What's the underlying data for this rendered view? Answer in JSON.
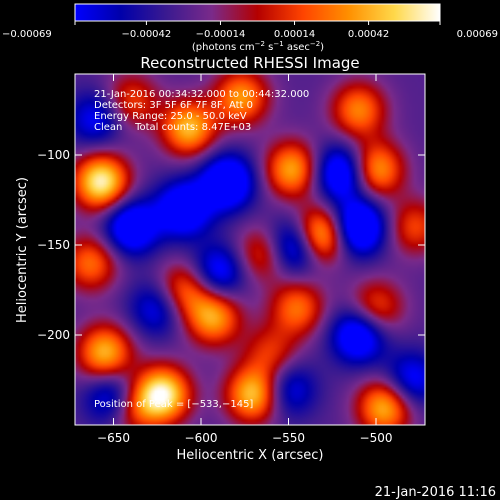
{
  "chart_data": {
    "type": "heatmap",
    "title": "Reconstructed RHESSI Image",
    "xlabel": "Heliocentric X (arcsec)",
    "ylabel": "Heliocentric Y (arcsec)",
    "xlim": [
      -672,
      -472
    ],
    "ylim": [
      -250,
      -55
    ],
    "x_ticks": [
      {
        "value": -650,
        "label": "−650"
      },
      {
        "value": -600,
        "label": "−600"
      },
      {
        "value": -550,
        "label": "−550"
      },
      {
        "value": -500,
        "label": "−500"
      }
    ],
    "y_ticks": [
      {
        "value": -100,
        "label": "−100"
      },
      {
        "value": -150,
        "label": "−150"
      },
      {
        "value": -200,
        "label": "−200"
      }
    ],
    "colorbar": {
      "min": -0.00069,
      "max": 0.00069,
      "ticks": [
        {
          "value": -0.00069,
          "label": "−0.00069"
        },
        {
          "value": -0.00042,
          "label": "−0.00042"
        },
        {
          "value": -0.00014,
          "label": "−0.00014"
        },
        {
          "value": 0.00014,
          "label": "0.00014"
        },
        {
          "value": 0.00042,
          "label": "0.00042"
        },
        {
          "value": 0.00069,
          "label": "0.00069"
        }
      ],
      "units_text": "(photons cm",
      "units_exp1": "−2",
      "units_mid": " s",
      "units_exp2": "−1",
      "units_tail": " asec",
      "units_exp3": "−2",
      "units_close": ")",
      "colors": [
        "#0000ff",
        "#0000aa",
        "#3a1a90",
        "#7a2a8a",
        "#b40000",
        "#ff4400",
        "#ff9000",
        "#ffd84a",
        "#ffffff"
      ]
    },
    "annotations": {
      "time_range": "21-Jan-2016 00:34:32.000 to 00:44:32.000",
      "detectors": "Detectors: 3F 5F 6F 7F 8F, Att 0",
      "energy": "Energy Range: 25.0 - 50.0 keV",
      "clean": "Clean    Total counts: 8.47E+03",
      "peak": "Position of Peak = [−533,−145]"
    },
    "peak": {
      "x": -533,
      "y": -145
    },
    "sources": [
      {
        "x": -533,
        "y": -145,
        "amp": 1.0
      },
      {
        "x": -657,
        "y": -115,
        "amp": 0.95
      },
      {
        "x": -622,
        "y": -233,
        "amp": 0.95
      },
      {
        "x": -570,
        "y": -233,
        "amp": 0.8
      },
      {
        "x": -655,
        "y": -210,
        "amp": 0.75
      },
      {
        "x": -607,
        "y": -85,
        "amp": 0.75
      },
      {
        "x": -548,
        "y": -108,
        "amp": 0.7
      },
      {
        "x": -500,
        "y": -108,
        "amp": 0.7
      },
      {
        "x": -495,
        "y": -240,
        "amp": 0.75
      },
      {
        "x": -577,
        "y": -68,
        "amp": 0.65
      },
      {
        "x": -510,
        "y": -75,
        "amp": 0.6
      },
      {
        "x": -593,
        "y": -190,
        "amp": 0.7
      },
      {
        "x": -610,
        "y": -175,
        "amp": 0.55
      },
      {
        "x": -545,
        "y": -185,
        "amp": 0.55
      },
      {
        "x": -500,
        "y": -185,
        "amp": 0.5
      },
      {
        "x": -663,
        "y": -160,
        "amp": 0.55
      },
      {
        "x": -565,
        "y": -155,
        "amp": 0.45
      },
      {
        "x": -640,
        "y": -70,
        "amp": 0.45
      },
      {
        "x": -640,
        "y": -240,
        "amp": 0.5
      },
      {
        "x": -560,
        "y": -210,
        "amp": 0.4
      },
      {
        "x": -478,
        "y": -140,
        "amp": 0.45
      },
      {
        "x": -610,
        "y": -130,
        "amp": -0.7
      },
      {
        "x": -585,
        "y": -115,
        "amp": -0.75
      },
      {
        "x": -545,
        "y": -150,
        "amp": -0.8
      },
      {
        "x": -510,
        "y": -140,
        "amp": -0.8
      },
      {
        "x": -520,
        "y": -110,
        "amp": -0.7
      },
      {
        "x": -640,
        "y": -140,
        "amp": -0.7
      },
      {
        "x": -510,
        "y": -200,
        "amp": -0.7
      },
      {
        "x": -650,
        "y": -235,
        "amp": -0.6
      },
      {
        "x": -590,
        "y": -165,
        "amp": -0.55
      },
      {
        "x": -625,
        "y": -185,
        "amp": -0.45
      },
      {
        "x": -550,
        "y": -230,
        "amp": -0.45
      },
      {
        "x": -480,
        "y": -225,
        "amp": -0.5
      },
      {
        "x": -660,
        "y": -80,
        "amp": -0.45
      }
    ]
  },
  "footer": {
    "timestamp": "21-Jan-2016 11:16"
  }
}
